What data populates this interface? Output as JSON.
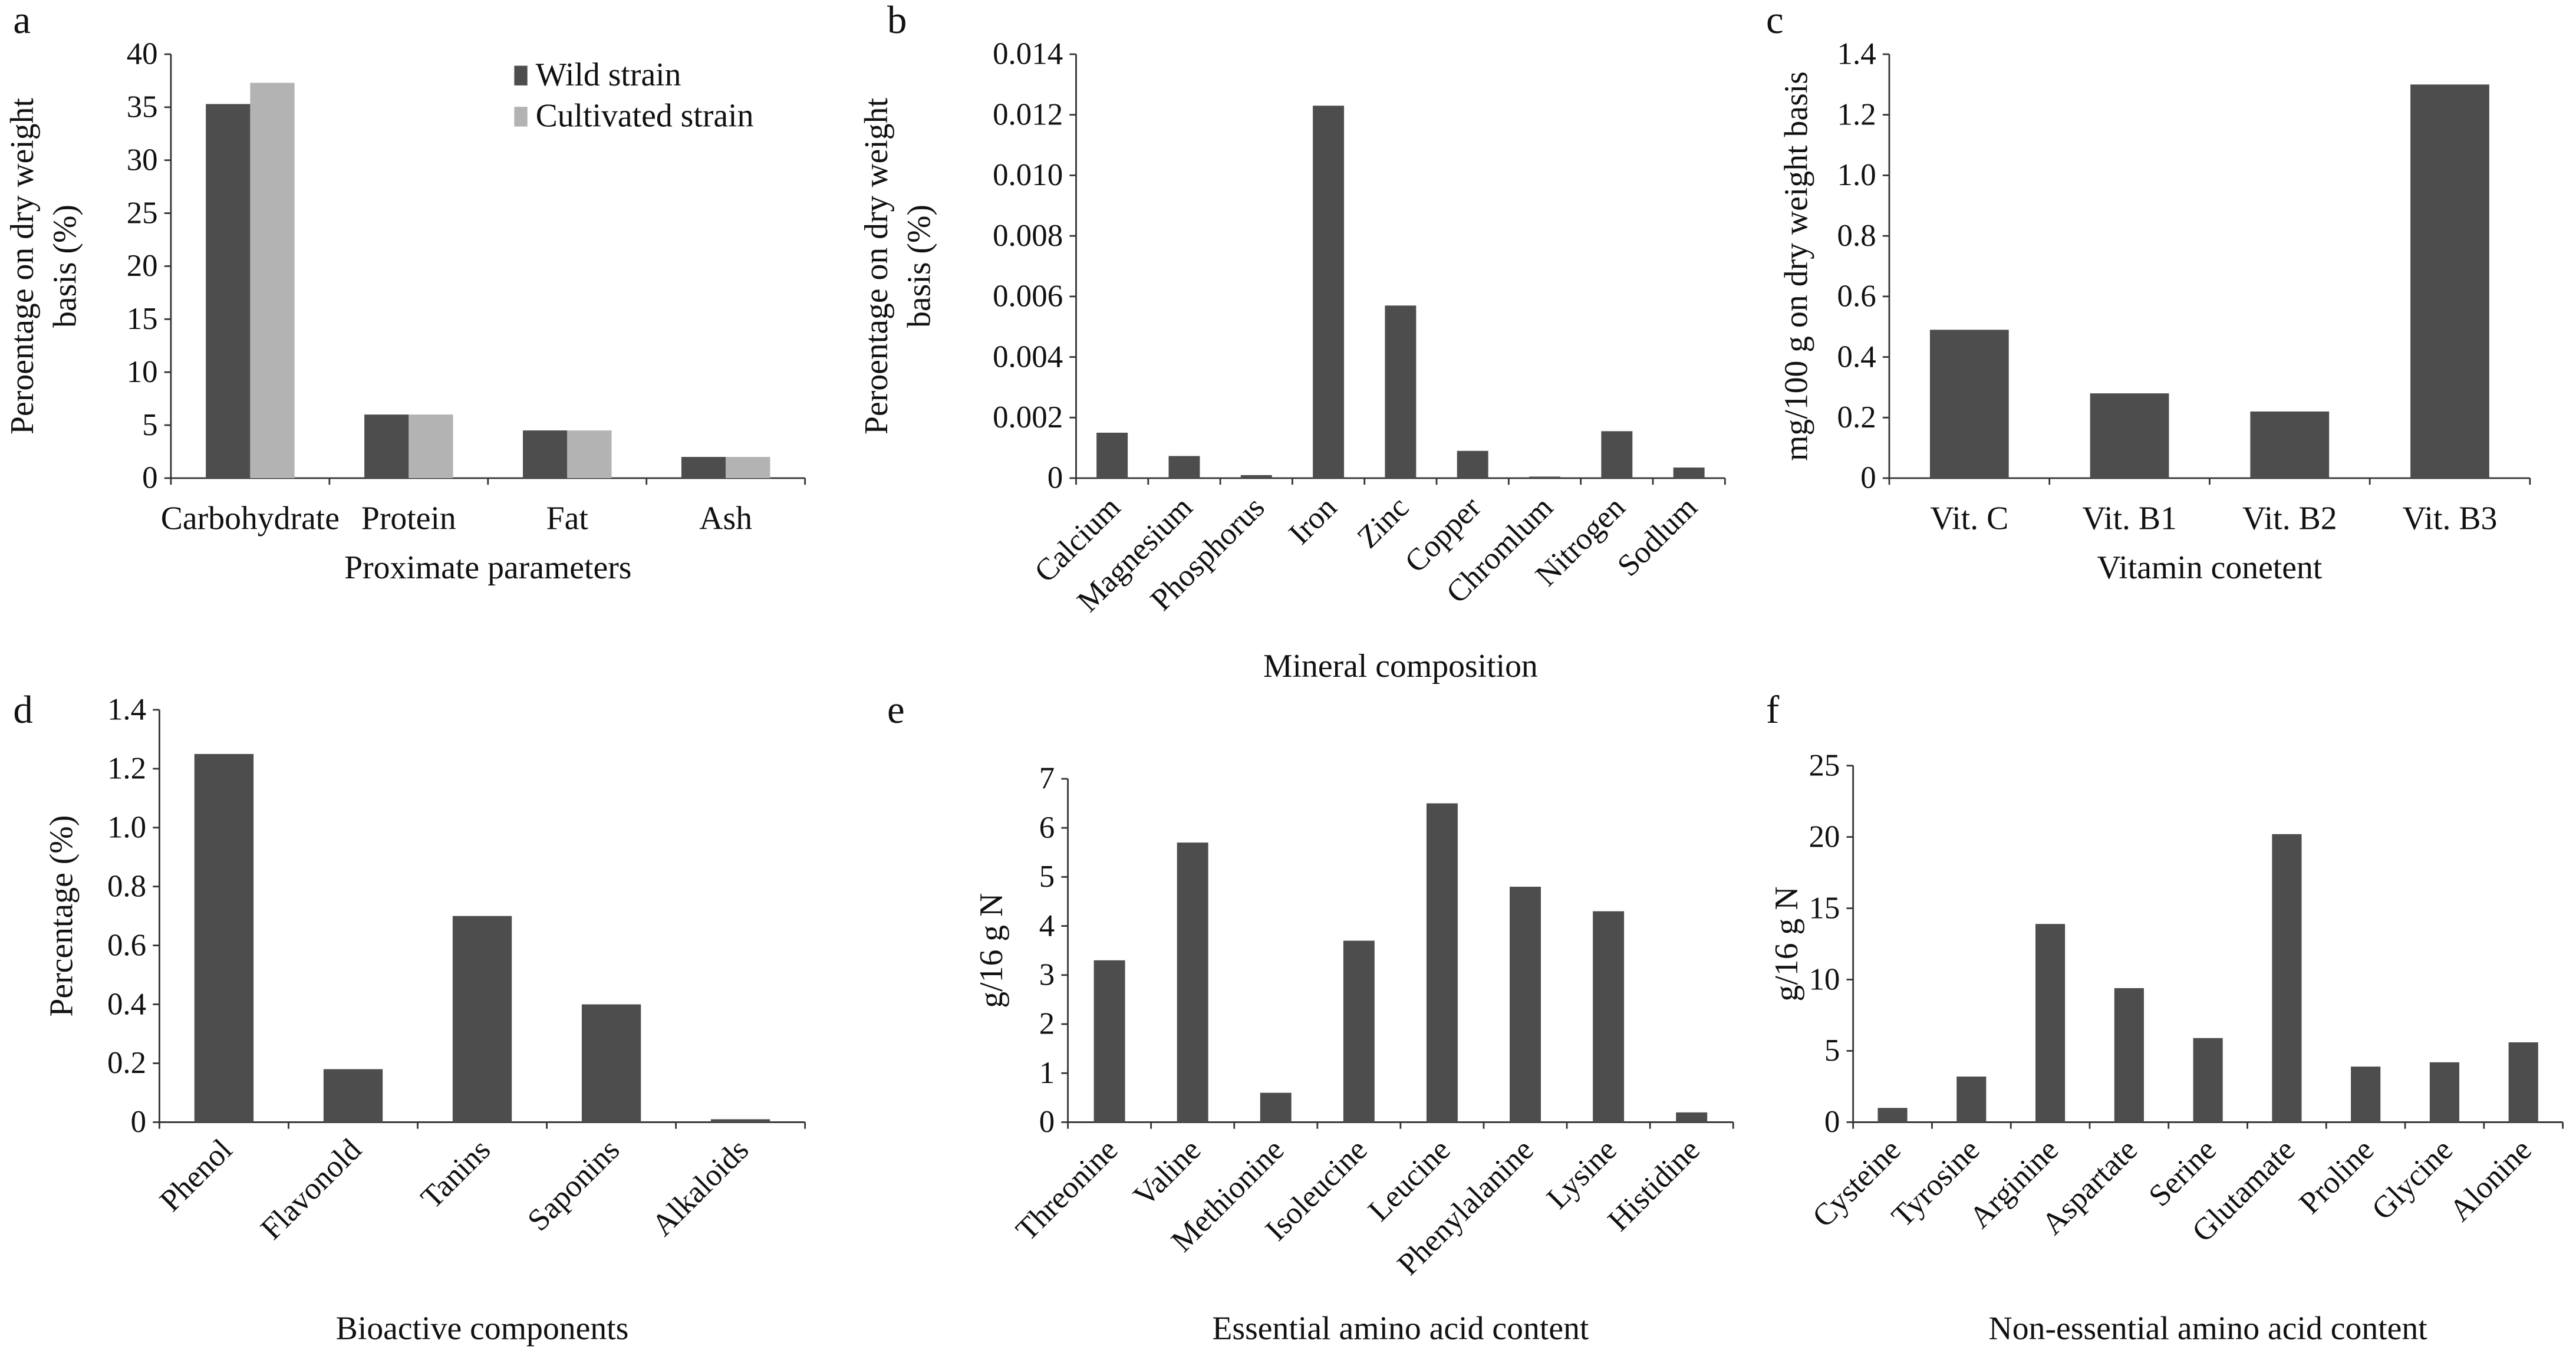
{
  "colors": {
    "wild": "#4d4d4d",
    "cultivated": "#b3b3b3",
    "bar": "#4d4d4d"
  },
  "chart_data": [
    {
      "panel": "a",
      "type": "bar",
      "categories": [
        "Carbohydrate",
        "Protein",
        "Fat",
        "Ash"
      ],
      "series": [
        {
          "name": "Wild strain",
          "values": [
            35.3,
            6.0,
            4.5,
            2.0
          ]
        },
        {
          "name": "Cultivated strain",
          "values": [
            37.3,
            6.0,
            4.5,
            2.0
          ]
        }
      ],
      "ylabel": [
        "Peroentage on dry weight",
        "basis (%)"
      ],
      "xlabel": "Proximate parameters",
      "ylim": [
        0,
        40
      ],
      "yticks": [
        "0",
        "5",
        "10",
        "15",
        "20",
        "25",
        "30",
        "35",
        "40"
      ],
      "legend": "top-right",
      "grid": false
    },
    {
      "panel": "b",
      "type": "bar",
      "categories": [
        "Calcium",
        "Magnesium",
        "Phosphorus",
        "Iron",
        "Zinc",
        "Copper",
        "Chromlum",
        "Nitrogen",
        "Sodlum"
      ],
      "series": [
        {
          "values": [
            0.0015,
            0.00073,
            0.0001,
            0.0123,
            0.0057,
            0.0009,
            5e-05,
            0.00155,
            0.00035
          ]
        }
      ],
      "ylabel": [
        "Peroentage on dry weight",
        "basis (%)"
      ],
      "xlabel": "Mineral composition",
      "ylim": [
        0,
        0.014
      ],
      "yticks": [
        "0",
        "0.002",
        "0.004",
        "0.006",
        "0.008",
        "0.010",
        "0.012",
        "0.014"
      ],
      "grid": false
    },
    {
      "panel": "c",
      "type": "bar",
      "categories": [
        "Vit. C",
        "Vit. B1",
        "Vit. B2",
        "Vit. B3"
      ],
      "series": [
        {
          "values": [
            0.49,
            0.28,
            0.22,
            1.3
          ]
        }
      ],
      "ylabel": [
        "mg/100 g on dry weight basis"
      ],
      "xlabel": "Vitamin conetent",
      "ylim": [
        0,
        1.4
      ],
      "yticks": [
        "0",
        "0.2",
        "0.4",
        "0.6",
        "0.8",
        "1.0",
        "1.2",
        "1.4"
      ],
      "grid": false
    },
    {
      "panel": "d",
      "type": "bar",
      "categories": [
        "Phenol",
        "Flavonold",
        "Tanins",
        "Saponins",
        "Alkaloids"
      ],
      "series": [
        {
          "values": [
            1.25,
            0.18,
            0.7,
            0.4,
            0.01
          ]
        }
      ],
      "ylabel": [
        "Percentage (%)"
      ],
      "xlabel": "Bioactive components",
      "ylim": [
        0,
        1.4
      ],
      "yticks": [
        "0",
        "0.2",
        "0.4",
        "0.6",
        "0.8",
        "1.0",
        "1.2",
        "1.4"
      ],
      "grid": false
    },
    {
      "panel": "e",
      "type": "bar",
      "categories": [
        "Threonine",
        "Valine",
        "Methionine",
        "Isoleucine",
        "Leucine",
        "Phenylalanine",
        "Lysine",
        "Histidine"
      ],
      "series": [
        {
          "values": [
            3.3,
            5.7,
            0.6,
            3.7,
            6.5,
            4.8,
            4.3,
            0.2
          ]
        }
      ],
      "ylabel": [
        "g/16 g N"
      ],
      "xlabel": "Essential amino acid content",
      "ylim": [
        0,
        7
      ],
      "yticks": [
        "0",
        "1",
        "2",
        "3",
        "4",
        "5",
        "6",
        "7"
      ],
      "grid": false
    },
    {
      "panel": "f",
      "type": "bar",
      "categories": [
        "Cysteine",
        "Tyrosine",
        "Arginine",
        "Aspartate",
        "Serine",
        "Glutamate",
        "Proline",
        "Glycine",
        "Alonine"
      ],
      "series": [
        {
          "values": [
            1.0,
            3.2,
            13.9,
            9.4,
            5.9,
            20.2,
            3.9,
            4.2,
            5.6
          ]
        }
      ],
      "ylabel": [
        "g/16 g N"
      ],
      "xlabel": "Non-essential amino acid content",
      "ylim": [
        0,
        25
      ],
      "yticks": [
        "0",
        "5",
        "10",
        "15",
        "20",
        "25"
      ],
      "grid": false
    }
  ]
}
